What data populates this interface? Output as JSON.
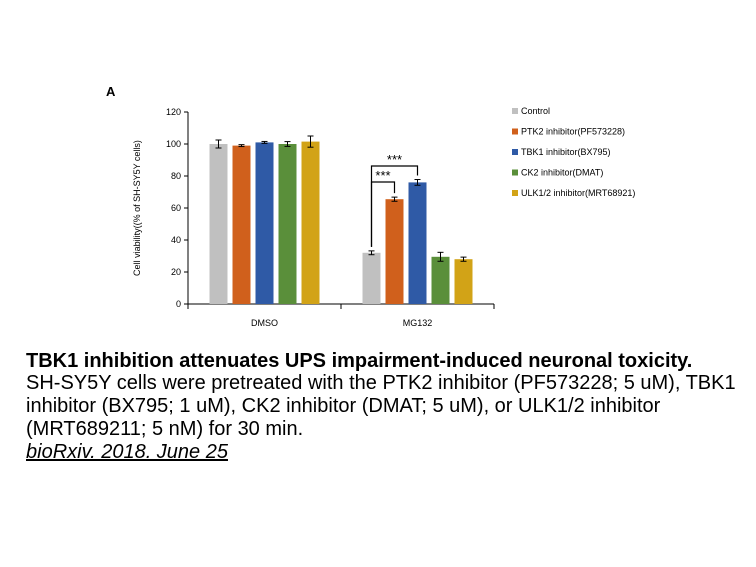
{
  "panel_label": "A",
  "chart_data": {
    "type": "bar",
    "categories": [
      "DMSO",
      "MG132"
    ],
    "ylabel": "Cell viability((% of SH-SY5Y cells)",
    "xlabel": "",
    "ylim": [
      0,
      120
    ],
    "yticks": [
      0,
      20,
      40,
      60,
      80,
      100,
      120
    ],
    "grid": false,
    "legend_position": "right",
    "series": [
      {
        "name": "Control",
        "color": "#c0c0c0",
        "values": [
          100,
          32
        ],
        "errors": [
          2.5,
          1.2
        ]
      },
      {
        "name": "PTK2 inhibitor(PF573228)",
        "color": "#d0601c",
        "values": [
          99,
          65.5
        ],
        "errors": [
          0.6,
          1.3
        ]
      },
      {
        "name": "TBK1 inhibitor(BX795)",
        "color": "#2f5aa6",
        "values": [
          101,
          76
        ],
        "errors": [
          0.6,
          1.8
        ]
      },
      {
        "name": "CK2 inhibitor(DMAT)",
        "color": "#5a8f3a",
        "values": [
          100,
          29.5
        ],
        "errors": [
          1.5,
          2.8
        ]
      },
      {
        "name": "ULK1/2 inhibitor(MRT68921)",
        "color": "#d2a317",
        "values": [
          101.5,
          28
        ],
        "errors": [
          3.5,
          1.3
        ]
      }
    ],
    "annotations": [
      {
        "text": "***",
        "category": "MG132",
        "from_series": 0,
        "to_series": 1
      },
      {
        "text": "***",
        "category": "MG132",
        "from_series": 0,
        "to_series": 2
      }
    ]
  },
  "caption": {
    "title": "TBK1 inhibition attenuates UPS impairment-induced neuronal toxicity.",
    "body": "SH-SY5Y cells were pretreated with the PTK2 inhibitor (PF573228; 5 uM), TBK1 inhibitor (BX795; 1 uM), CK2 inhibitor (DMAT; 5 uM), or ULK1/2 inhibitor (MRT689211; 5 nM) for 30 min.",
    "source": "bioRxiv. 2018. June 25"
  }
}
